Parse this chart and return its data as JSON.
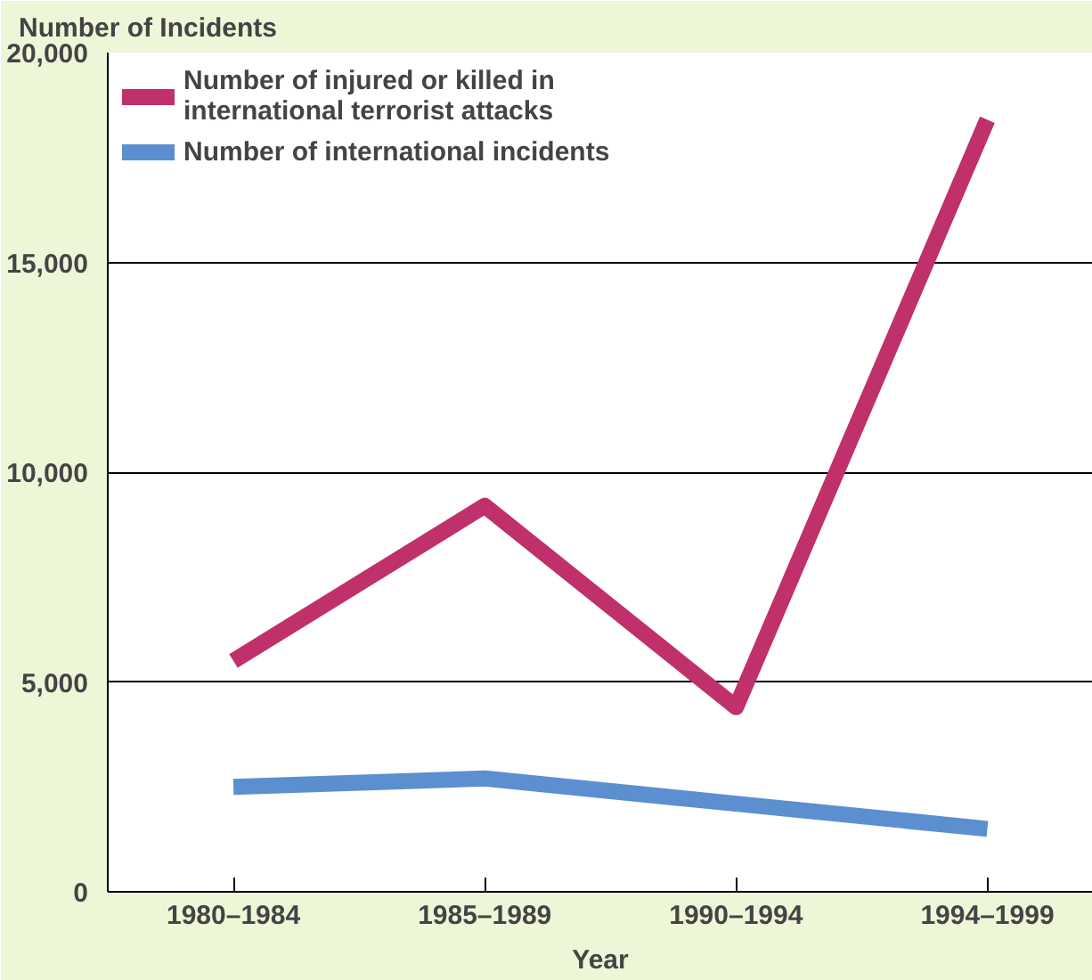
{
  "chart_data": {
    "type": "line",
    "ylabel": "Number of Incidents",
    "xlabel": "Year",
    "categories": [
      "1980–1984",
      "1985–1989",
      "1990–1994",
      "1994–1999"
    ],
    "series": [
      {
        "name": "Number of injured or killed in international terrorist attacks",
        "color": "#c0306a",
        "values": [
          5500,
          9200,
          4400,
          18400
        ]
      },
      {
        "name": "Number of international incidents",
        "color": "#5b8fd0",
        "values": [
          2500,
          2700,
          2100,
          1500
        ]
      }
    ],
    "ylim": [
      0,
      20000
    ],
    "yticks": [
      {
        "value": 0,
        "label": "0"
      },
      {
        "value": 5000,
        "label": "5,000"
      },
      {
        "value": 10000,
        "label": "10,000"
      },
      {
        "value": 15000,
        "label": "15,000"
      },
      {
        "value": 20000,
        "label": "20,000"
      }
    ],
    "grid": "y",
    "legend": "top left",
    "marker": "none",
    "line_style": "solid"
  }
}
